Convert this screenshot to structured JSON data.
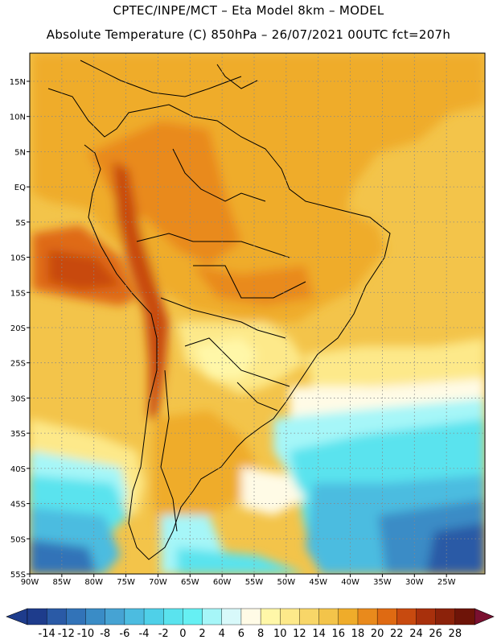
{
  "title": {
    "line1": "CPTEC/INPE/MCT –  Eta Model 8km – MODEL",
    "line2": "Absolute Temperature (C) 850hPa – 26/07/2021 00UTC fct=207h"
  },
  "map": {
    "lon_range": [
      -90,
      -19
    ],
    "lat_range": [
      -55,
      19
    ],
    "lat_ticks": [
      "15N",
      "10N",
      "5N",
      "EQ",
      "5S",
      "10S",
      "15S",
      "20S",
      "25S",
      "30S",
      "35S",
      "40S",
      "45S",
      "50S",
      "55S"
    ],
    "lon_ticks": [
      "90W",
      "85W",
      "80W",
      "75W",
      "70W",
      "65W",
      "60W",
      "55W",
      "50W",
      "45W",
      "40W",
      "35W",
      "30W",
      "25W"
    ],
    "gridlines": true
  },
  "colorbar": {
    "labels": [
      "-14",
      "-12",
      "-10",
      "-8",
      "-6",
      "-4",
      "-2",
      "0",
      "2",
      "4",
      "6",
      "8",
      "10",
      "12",
      "14",
      "16",
      "18",
      "20",
      "22",
      "24",
      "26",
      "28"
    ],
    "colors": [
      "#1e3c8c",
      "#2a5aa6",
      "#3273b8",
      "#3a8cc6",
      "#46a3d3",
      "#4cbce0",
      "#4fd0e8",
      "#5ae3ee",
      "#66f0f3",
      "#a6f6f8",
      "#d8f9fa",
      "#fffbe6",
      "#fff7a8",
      "#fde98a",
      "#f8d668",
      "#f3c44a",
      "#efac2a",
      "#e98a1c",
      "#df6a12",
      "#c84a0f",
      "#a8300c",
      "#8c220a",
      "#6e1408"
    ],
    "low_end_color": "#1e3c8c",
    "high_end_color": "#7a1030"
  }
}
